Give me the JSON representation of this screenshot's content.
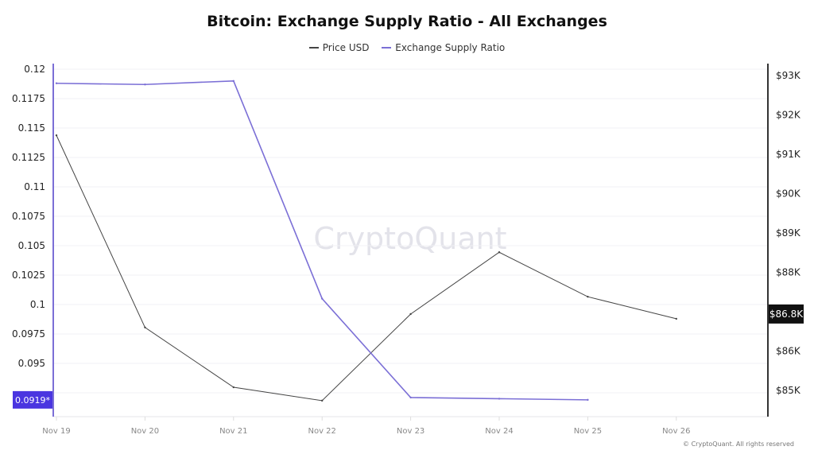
{
  "chart_data": {
    "type": "line",
    "title": "Bitcoin: Exchange Supply Ratio - All Exchanges",
    "watermark": "CryptoQuant",
    "copyright": "© CryptoQuant. All rights reserved",
    "x": [
      "Nov 19",
      "Nov 20",
      "Nov 21",
      "Nov 22",
      "Nov 23",
      "Nov 24",
      "Nov 25",
      "Nov 26"
    ],
    "legend_position": "top",
    "grid": true,
    "series": [
      {
        "name": "Price USD",
        "axis": "right",
        "color": "#444444",
        "values": [
          91.46,
          86.58,
          85.06,
          84.72,
          86.92,
          88.49,
          87.36,
          86.8
        ]
      },
      {
        "name": "Exchange Supply Ratio",
        "axis": "left",
        "color": "#7b6fd6",
        "values": [
          0.1188,
          0.1187,
          0.119,
          0.1005,
          0.0921,
          0.092,
          0.0919,
          null
        ]
      }
    ],
    "left_axis": {
      "ticks": [
        "0.12",
        "0.1175",
        "0.115",
        "0.1125",
        "0.11",
        "0.1075",
        "0.105",
        "0.1025",
        "0.1",
        "0.0975",
        "0.095"
      ],
      "tick_values": [
        0.12,
        0.1175,
        0.115,
        0.1125,
        0.11,
        0.1075,
        0.105,
        0.1025,
        0.1,
        0.0975,
        0.095
      ],
      "ylim": [
        0.0905,
        0.1205
      ],
      "current_label": "0.0919*",
      "current_value": 0.0919,
      "color": "#7b6fd6",
      "label_bg": "#4a35e0"
    },
    "right_axis": {
      "ticks": [
        "$93K",
        "$92K",
        "$91K",
        "$90K",
        "$89K",
        "$88K",
        "$86K",
        "$85K"
      ],
      "tick_values": [
        93,
        92,
        91,
        90,
        89,
        88,
        86,
        85
      ],
      "unit": "K USD",
      "current_label": "$86.8K",
      "current_value": 86.8
    }
  }
}
